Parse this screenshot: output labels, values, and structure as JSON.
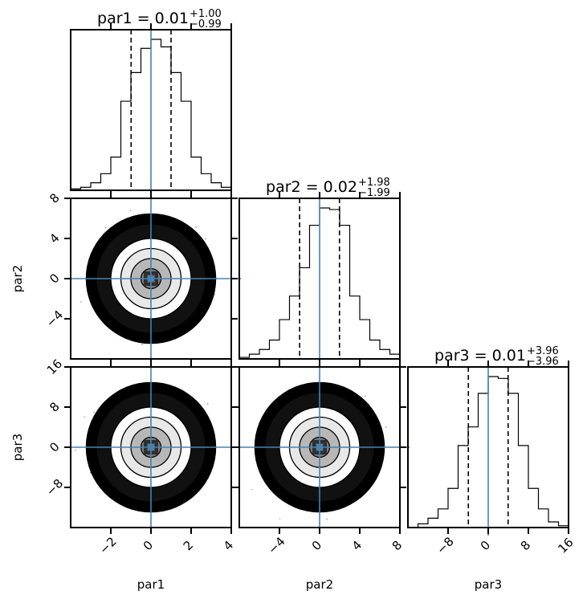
{
  "chart_data": {
    "type": "corner",
    "truth_color": "#4682b4",
    "parameters": [
      {
        "name": "par1",
        "title": "par1 = 0.01",
        "err_plus": "+1.00",
        "err_minus": "−0.99",
        "median": 0.01,
        "quantiles": [
          -0.99,
          1.0
        ],
        "truth": 0,
        "range": [
          -4,
          4
        ],
        "ticks": [
          -2,
          0,
          2,
          4
        ],
        "tick_labels": [
          "−2",
          "0",
          "2",
          "4"
        ],
        "hist_bins": [
          -4,
          -3.5,
          -3,
          -2.5,
          -2,
          -1.5,
          -1,
          -0.5,
          0,
          0.5,
          1,
          1.5,
          2,
          2.5,
          3,
          3.5,
          4
        ],
        "hist_heights": [
          0.01,
          0.02,
          0.05,
          0.11,
          0.22,
          0.59,
          0.78,
          0.94,
          1.0,
          0.95,
          0.78,
          0.59,
          0.22,
          0.11,
          0.05,
          0.02
        ]
      },
      {
        "name": "par2",
        "title": "par2 = 0.02",
        "err_plus": "+1.98",
        "err_minus": "−1.99",
        "median": 0.02,
        "quantiles": [
          -1.99,
          1.98
        ],
        "truth": 0,
        "range": [
          -8,
          8
        ],
        "ticks": [
          -4,
          0,
          4,
          8
        ],
        "tick_labels": [
          "−4",
          "0",
          "4",
          "8"
        ],
        "hist_bins": [
          -8,
          -7,
          -6,
          -5,
          -4,
          -3,
          -2,
          -1,
          0,
          1,
          2,
          3,
          4,
          5,
          6,
          7,
          8
        ],
        "hist_heights": [
          0.01,
          0.03,
          0.06,
          0.12,
          0.25,
          0.4,
          0.58,
          0.85,
          0.96,
          0.95,
          0.85,
          0.4,
          0.25,
          0.12,
          0.06,
          0.03
        ]
      },
      {
        "name": "par3",
        "title": "par3 = 0.01",
        "err_plus": "+3.96",
        "err_minus": "−3.96",
        "median": 0.01,
        "quantiles": [
          -3.96,
          3.96
        ],
        "truth": 0,
        "range": [
          -16,
          16
        ],
        "ticks": [
          -8,
          0,
          8,
          16
        ],
        "tick_labels": [
          "−8",
          "0",
          "8",
          "16"
        ],
        "hist_bins": [
          -16,
          -14,
          -12,
          -10,
          -8,
          -6,
          -4,
          -2,
          0,
          2,
          4,
          6,
          8,
          10,
          12,
          14,
          16
        ],
        "hist_heights": [
          0.0,
          0.02,
          0.05,
          0.1,
          0.21,
          0.44,
          0.54,
          0.72,
          0.81,
          0.8,
          0.72,
          0.44,
          0.21,
          0.1,
          0.03,
          0.01
        ]
      }
    ],
    "contour_sigma_levels": [
      0.5,
      1.0,
      1.5,
      2.0
    ],
    "grid": false
  }
}
